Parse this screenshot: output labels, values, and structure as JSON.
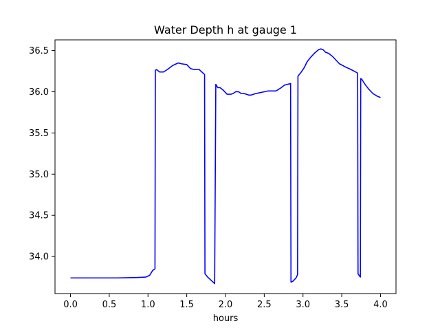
{
  "chart_data": {
    "type": "line",
    "title": "Water Depth h at gauge 1",
    "xlabel": "hours",
    "ylabel": "",
    "xlim": [
      -0.2,
      4.2
    ],
    "ylim": [
      33.55,
      36.63
    ],
    "xticks": [
      0.0,
      0.5,
      1.0,
      1.5,
      2.0,
      2.5,
      3.0,
      3.5,
      4.0
    ],
    "xtick_labels": [
      "0.0",
      "0.5",
      "1.0",
      "1.5",
      "2.0",
      "2.5",
      "3.0",
      "3.5",
      "4.0"
    ],
    "yticks": [
      34.0,
      34.5,
      35.0,
      35.5,
      36.0,
      36.5
    ],
    "ytick_labels": [
      "34.0",
      "34.5",
      "35.0",
      "35.5",
      "36.0",
      "36.5"
    ],
    "grid": false,
    "series": [
      {
        "color": "#0000ff",
        "x": [
          0.0,
          0.3,
          0.6,
          0.85,
          0.97,
          1.02,
          1.06,
          1.09,
          1.095,
          1.11,
          1.15,
          1.2,
          1.25,
          1.32,
          1.39,
          1.43,
          1.5,
          1.55,
          1.6,
          1.66,
          1.73,
          1.735,
          1.77,
          1.85,
          1.86,
          1.875,
          1.9,
          1.93,
          1.97,
          2.02,
          2.07,
          2.1,
          2.13,
          2.17,
          2.2,
          2.23,
          2.27,
          2.3,
          2.33,
          2.36,
          2.4,
          2.45,
          2.5,
          2.55,
          2.6,
          2.65,
          2.67,
          2.72,
          2.76,
          2.8,
          2.84,
          2.845,
          2.85,
          2.87,
          2.91,
          2.92,
          2.93,
          2.935,
          2.97,
          3.0,
          3.02,
          3.05,
          3.1,
          3.15,
          3.2,
          3.23,
          3.26,
          3.29,
          3.32,
          3.34,
          3.38,
          3.42,
          3.47,
          3.55,
          3.62,
          3.66,
          3.7,
          3.705,
          3.71,
          3.74,
          3.745,
          3.76,
          3.8,
          3.85,
          3.9,
          3.95,
          4.0
        ],
        "y": [
          33.74,
          33.74,
          33.74,
          33.745,
          33.75,
          33.77,
          33.83,
          33.85,
          36.26,
          36.27,
          36.24,
          36.24,
          36.27,
          36.32,
          36.35,
          36.34,
          36.33,
          36.28,
          36.27,
          36.27,
          36.21,
          33.79,
          33.75,
          33.68,
          33.67,
          36.09,
          36.05,
          36.05,
          36.02,
          35.97,
          35.97,
          35.98,
          36.0,
          36.0,
          35.98,
          35.98,
          35.97,
          35.96,
          35.96,
          35.97,
          35.98,
          35.99,
          36.0,
          36.01,
          36.01,
          36.01,
          36.02,
          36.05,
          36.08,
          36.09,
          36.1,
          33.69,
          33.69,
          33.7,
          33.74,
          33.76,
          33.78,
          36.19,
          36.23,
          36.27,
          36.3,
          36.36,
          36.42,
          36.47,
          36.51,
          36.52,
          36.51,
          36.48,
          36.47,
          36.46,
          36.43,
          36.39,
          36.34,
          36.3,
          36.27,
          36.25,
          36.23,
          36.22,
          33.79,
          33.75,
          36.16,
          36.15,
          36.09,
          36.03,
          35.98,
          35.95,
          35.93
        ]
      }
    ]
  }
}
